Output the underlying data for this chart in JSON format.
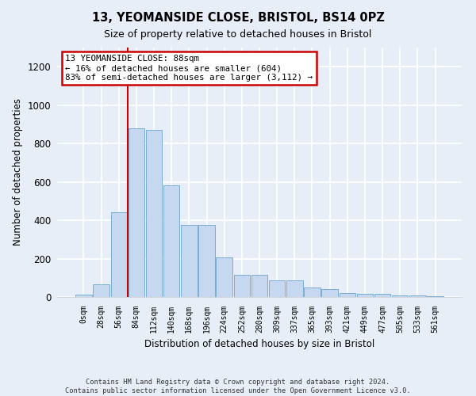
{
  "title": "13, YEOMANSIDE CLOSE, BRISTOL, BS14 0PZ",
  "subtitle": "Size of property relative to detached houses in Bristol",
  "xlabel": "Distribution of detached houses by size in Bristol",
  "ylabel": "Number of detached properties",
  "bar_values": [
    12,
    65,
    440,
    880,
    870,
    580,
    375,
    375,
    205,
    115,
    115,
    85,
    85,
    50,
    40,
    22,
    18,
    18,
    10,
    8,
    5
  ],
  "bar_labels": [
    "0sqm",
    "28sqm",
    "56sqm",
    "84sqm",
    "112sqm",
    "140sqm",
    "168sqm",
    "196sqm",
    "224sqm",
    "252sqm",
    "280sqm",
    "309sqm",
    "337sqm",
    "365sqm",
    "393sqm",
    "421sqm",
    "449sqm",
    "477sqm",
    "505sqm",
    "533sqm",
    "561sqm"
  ],
  "bar_color": "#c5d8f0",
  "bar_edge_color": "#7aadd4",
  "ylim": [
    0,
    1300
  ],
  "yticks": [
    0,
    200,
    400,
    600,
    800,
    1000,
    1200
  ],
  "vline_index": 3,
  "annotation_title": "13 YEOMANSIDE CLOSE: 88sqm",
  "annotation_line1": "← 16% of detached houses are smaller (604)",
  "annotation_line2": "83% of semi-detached houses are larger (3,112) →",
  "annotation_box_color": "#ffffff",
  "annotation_box_edge": "#cc0000",
  "vline_color": "#cc0000",
  "footer_line1": "Contains HM Land Registry data © Crown copyright and database right 2024.",
  "footer_line2": "Contains public sector information licensed under the Open Government Licence v3.0.",
  "background_color": "#e8eef8",
  "grid_color": "#ffffff"
}
